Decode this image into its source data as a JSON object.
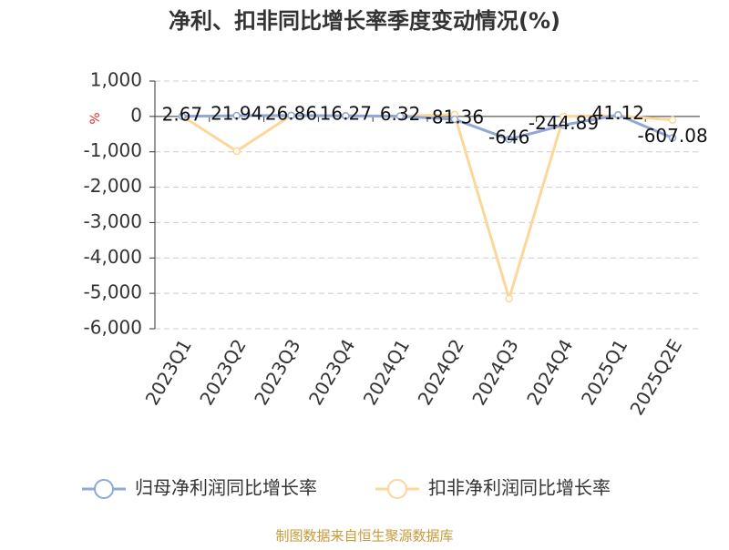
{
  "chart_data": {
    "type": "line",
    "title": "净利、扣非同比增长率季度变动情况(%)",
    "y_unit": "%",
    "categories": [
      "2023Q1",
      "2023Q2",
      "2023Q3",
      "2023Q4",
      "2024Q1",
      "2024Q2",
      "2024Q3",
      "2024Q4",
      "2025Q1",
      "2025Q2E"
    ],
    "series": [
      {
        "name": "归母净利润同比增长率",
        "color": "#8fa8d8",
        "values": [
          2.67,
          21.94,
          26.86,
          16.27,
          6.32,
          -81.36,
          -646,
          -244.89,
          41.12,
          -607.08
        ],
        "show_labels": true
      },
      {
        "name": "扣非净利润同比增长率",
        "color": "#fbd89a",
        "values": [
          10,
          -980,
          30,
          20,
          10,
          50,
          -5150,
          0,
          20,
          -100
        ]
      }
    ],
    "ylim": [
      -6000,
      1000
    ],
    "yticks": [
      {
        "value": -6000,
        "label": "-6,000"
      },
      {
        "value": -5000,
        "label": "-5,000"
      },
      {
        "value": -4000,
        "label": "-4,000"
      },
      {
        "value": -3000,
        "label": "-3,000"
      },
      {
        "value": -2000,
        "label": "-2,000"
      },
      {
        "value": -1000,
        "label": "-1,000"
      },
      0,
      {
        "value": 1000,
        "label": "1,000"
      }
    ],
    "grid": true,
    "source": "制图数据来自恒生聚源数据库"
  }
}
